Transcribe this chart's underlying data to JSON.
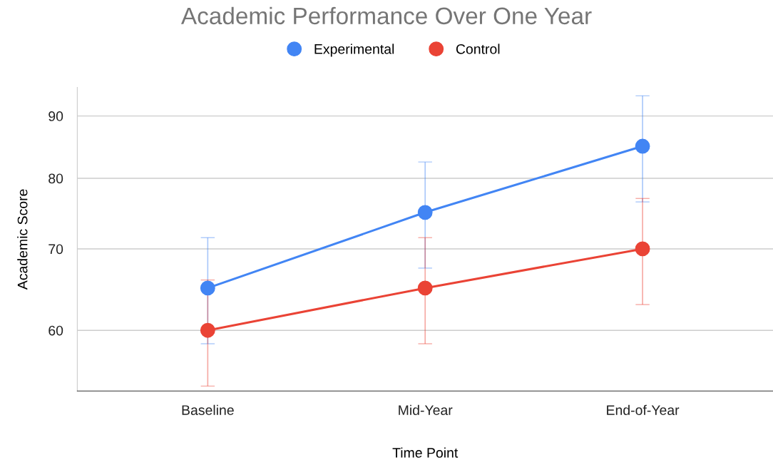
{
  "chart_data": {
    "type": "line",
    "title": "Academic Performance Over One Year",
    "xlabel": "Time Point",
    "ylabel": "Academic Score",
    "categories": [
      "Baseline",
      "Mid-Year",
      "End-of-Year"
    ],
    "series": [
      {
        "name": "Experimental",
        "color": "#4285f4",
        "values": [
          65,
          75,
          85
        ],
        "errors": [
          6.5,
          7.5,
          8.5
        ]
      },
      {
        "name": "Control",
        "color": "#ea4335",
        "values": [
          60,
          65,
          70
        ],
        "errors": [
          6,
          6.5,
          7
        ]
      }
    ],
    "log": true,
    "ylim": [
      53.5,
      95
    ],
    "yticks": [
      60,
      70,
      80,
      90
    ],
    "grid": "y",
    "legend": "top",
    "marker": "circle",
    "line_style": "solid"
  }
}
